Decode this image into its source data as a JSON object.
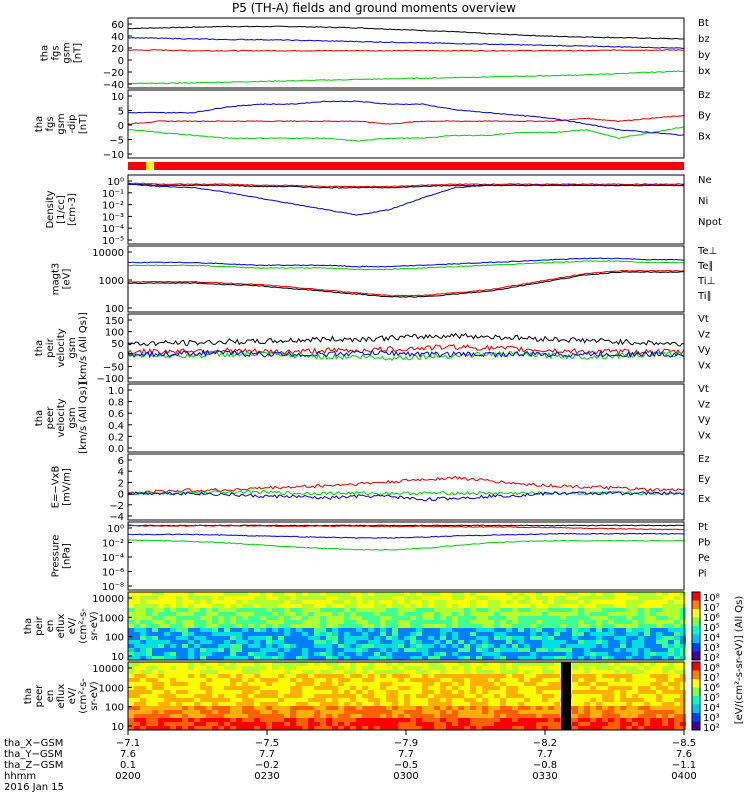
{
  "title": "P5 (TH-A) fields and ground moments overview",
  "colors": {
    "black": "#000000",
    "red": "#e00000",
    "green": "#00d000",
    "blue": "#0000e0"
  },
  "chart_data": [
    {
      "type": "line",
      "id": "fgs_mag",
      "ylabel": [
        "tha",
        "fgs",
        "gsm",
        "[nT]"
      ],
      "yticks": [
        "60",
        "40",
        "20",
        "0",
        "−20",
        "−40"
      ],
      "ylim": [
        -45,
        62
      ],
      "series": [
        {
          "name": "Bt",
          "color": "#000000",
          "values": [
            46,
            47,
            48,
            49,
            49,
            49,
            48,
            47,
            45,
            43,
            41,
            38,
            36,
            34,
            33,
            32,
            31,
            30
          ]
        },
        {
          "name": "bz",
          "color": "#e00000",
          "values": [
            13,
            13,
            12,
            12,
            12,
            12,
            12,
            12,
            12,
            12,
            12,
            12,
            12,
            12,
            12,
            13,
            13,
            13
          ]
        },
        {
          "name": "by",
          "color": "#00d000",
          "values": [
            -38,
            -38,
            -37,
            -36,
            -35,
            -34,
            -33,
            -32,
            -31,
            -30,
            -29,
            -28,
            -27,
            -26,
            -25,
            -23,
            -21,
            -19
          ]
        },
        {
          "name": "bx",
          "color": "#0000e0",
          "values": [
            32,
            31,
            30,
            29,
            29,
            28,
            27,
            26,
            25,
            24,
            23,
            22,
            21,
            20,
            19,
            18,
            17,
            16
          ]
        }
      ]
    },
    {
      "type": "line",
      "id": "fgs_mag_detail",
      "ylabel": [
        "tha",
        "fgs",
        "gsm",
        "-dip",
        "[nT]"
      ],
      "yticks": [
        "10",
        "5",
        "0",
        "−5",
        "−10"
      ],
      "ylim": [
        -13,
        11
      ],
      "series": [
        {
          "name": "Bz",
          "color": "#e00000",
          "values": [
            -1,
            0,
            0,
            0,
            0,
            0,
            0,
            0,
            -1,
            0,
            0,
            0,
            0,
            0,
            1,
            0,
            1,
            2
          ]
        },
        {
          "name": "By",
          "color": "#00d000",
          "values": [
            -3,
            -4,
            -5,
            -6,
            -6,
            -6,
            -6,
            -7,
            -6,
            -6,
            -5,
            -5,
            -4,
            -4,
            -3,
            -6,
            -4,
            -2
          ]
        },
        {
          "name": "Bx",
          "color": "#0000e0",
          "values": [
            3,
            3,
            3,
            5,
            6,
            6,
            7,
            7,
            6,
            6,
            4,
            3,
            2,
            1,
            -1,
            -3,
            -4,
            -5
          ]
        }
      ]
    },
    {
      "type": "line",
      "id": "density",
      "scale": "log",
      "ylabel": [
        "Density",
        "[1/cc]",
        "[cm-3]"
      ],
      "yticks": [
        "10⁰",
        "10⁻¹",
        "10⁻²",
        "10⁻³",
        "10⁻⁴",
        "10⁻⁵"
      ],
      "ylim": [
        -5.5,
        0.5
      ],
      "series": [
        {
          "name": "Ne",
          "color": "#e00000",
          "values": [
            -0.2,
            -0.3,
            -0.3,
            -0.3,
            -0.4,
            -0.4,
            -0.5,
            -0.5,
            -0.5,
            -0.4,
            -0.3,
            -0.3,
            -0.3,
            -0.3,
            -0.3,
            -0.3,
            -0.3,
            -0.3
          ]
        },
        {
          "name": "Ni",
          "color": "#000000",
          "values": [
            -0.3,
            -0.4,
            -0.4,
            -0.4,
            -0.5,
            -0.5,
            -0.6,
            -0.6,
            -0.6,
            -0.5,
            -0.4,
            -0.4,
            -0.4,
            -0.4,
            -0.4,
            -0.4,
            -0.4,
            -0.4
          ]
        },
        {
          "name": "Npot",
          "color": "#0000e0",
          "values": [
            -0.3,
            -0.5,
            -0.6,
            -1.0,
            -1.5,
            -2.0,
            -2.5,
            -3.0,
            -2.5,
            -1.5,
            -0.6,
            -0.4,
            -0.4,
            -0.4,
            -0.4,
            -0.4,
            -0.4,
            -0.4
          ]
        }
      ]
    },
    {
      "type": "line",
      "id": "temperature",
      "scale": "log",
      "ylabel": [
        "magt3",
        "[eV]"
      ],
      "yticks": [
        "10000",
        "1000",
        "100"
      ],
      "ylim": [
        1.7,
        4.1
      ],
      "series": [
        {
          "name": "Te⊥",
          "color": "#e00000",
          "values": [
            2.8,
            2.8,
            2.8,
            2.75,
            2.7,
            2.6,
            2.5,
            2.4,
            2.3,
            2.3,
            2.4,
            2.5,
            2.7,
            2.9,
            3.1,
            3.2,
            3.2,
            3.2
          ]
        },
        {
          "name": "Te∥",
          "color": "#000000",
          "values": [
            2.75,
            2.75,
            2.75,
            2.7,
            2.65,
            2.55,
            2.45,
            2.35,
            2.25,
            2.25,
            2.35,
            2.45,
            2.65,
            2.85,
            3.05,
            3.15,
            3.15,
            3.15
          ]
        },
        {
          "name": "Ti⊥",
          "color": "#0000e0",
          "values": [
            3.5,
            3.5,
            3.5,
            3.45,
            3.4,
            3.4,
            3.4,
            3.35,
            3.35,
            3.4,
            3.45,
            3.5,
            3.55,
            3.6,
            3.65,
            3.65,
            3.6,
            3.6
          ]
        },
        {
          "name": "Ti∥",
          "color": "#00d000",
          "values": [
            3.4,
            3.4,
            3.4,
            3.35,
            3.3,
            3.3,
            3.3,
            3.25,
            3.25,
            3.3,
            3.35,
            3.4,
            3.45,
            3.5,
            3.55,
            3.55,
            3.5,
            3.5
          ]
        }
      ]
    },
    {
      "type": "line",
      "id": "peir_velocity",
      "ylabel": [
        "tha",
        "peir",
        "velocity",
        "gsm",
        "[km/s (All Qs)]"
      ],
      "yticks": [
        "150",
        "100",
        "50",
        "0",
        "−50",
        "−100"
      ],
      "ylim": [
        -110,
        160
      ],
      "series": [
        {
          "name": "Vt",
          "color": "#000000",
          "values": [
            40,
            45,
            45,
            50,
            50,
            55,
            60,
            60,
            65,
            70,
            75,
            70,
            65,
            60,
            55,
            50,
            45,
            40
          ]
        },
        {
          "name": "Vz",
          "color": "#e00000",
          "values": [
            10,
            10,
            15,
            15,
            10,
            10,
            15,
            15,
            20,
            25,
            30,
            25,
            20,
            15,
            10,
            10,
            10,
            10
          ]
        },
        {
          "name": "Vy",
          "color": "#00d000",
          "values": [
            0,
            -5,
            -5,
            0,
            0,
            -5,
            -10,
            -10,
            -15,
            -10,
            -5,
            0,
            0,
            -5,
            -10,
            -5,
            0,
            0
          ]
        },
        {
          "name": "Vx",
          "color": "#0000e0",
          "values": [
            0,
            0,
            5,
            5,
            0,
            0,
            0,
            5,
            5,
            0,
            0,
            0,
            0,
            0,
            0,
            0,
            0,
            0
          ]
        }
      ]
    },
    {
      "type": "line",
      "id": "peer_velocity",
      "ylabel": [
        "tha",
        "peer",
        "velocity",
        "gsm",
        "[km/s (All Qs)]"
      ],
      "yticks": [
        "1.0",
        "0.8",
        "0.6",
        "0.4",
        "0.2",
        "0.0"
      ],
      "ylim": [
        0,
        1.05
      ],
      "series": [
        {
          "name": "Vt",
          "color": "#000000",
          "values": []
        },
        {
          "name": "Vz",
          "color": "#e00000",
          "values": []
        },
        {
          "name": "Vy",
          "color": "#00d000",
          "values": []
        },
        {
          "name": "Vx",
          "color": "#0000e0",
          "values": []
        }
      ]
    },
    {
      "type": "line",
      "id": "efield",
      "ylabel": [
        "E=−VxB",
        "[mV/m]"
      ],
      "yticks": [
        "6",
        "4",
        "2",
        "0",
        "−2",
        "−4"
      ],
      "ylim": [
        -4.3,
        6.3
      ],
      "series": [
        {
          "name": "Ez",
          "color": "#e00000",
          "values": [
            0,
            0.3,
            0.5,
            0.5,
            0.8,
            1.0,
            1.2,
            1.5,
            1.8,
            2.2,
            2.5,
            2.0,
            1.5,
            1.2,
            1.0,
            0.8,
            0.5,
            0.5
          ]
        },
        {
          "name": "Ey",
          "color": "#00d000",
          "values": [
            0,
            0,
            0,
            0.2,
            0.2,
            0,
            0,
            0,
            0,
            0,
            0,
            0,
            0,
            0,
            0,
            0,
            0,
            0
          ]
        },
        {
          "name": "Ex",
          "color": "#0000e0",
          "values": [
            0,
            0,
            0,
            -0.2,
            -0.5,
            -0.5,
            -0.8,
            -0.5,
            -0.5,
            -1.0,
            -0.8,
            -0.5,
            -0.3,
            0,
            0,
            0,
            0,
            0
          ]
        }
      ]
    },
    {
      "type": "line",
      "id": "pressure",
      "scale": "log",
      "ylabel": [
        "Pressure",
        "[nPa]"
      ],
      "yticks": [
        "10⁰",
        "10⁻²",
        "10⁻⁴",
        "10⁻⁶",
        "10⁻⁸"
      ],
      "ylim": [
        -9,
        0.8
      ],
      "series": [
        {
          "name": "Pt",
          "color": "#000000",
          "values": [
            0.3,
            0.3,
            0.3,
            0.3,
            0.3,
            0.3,
            0.3,
            0.3,
            0.3,
            0.3,
            0.3,
            0.3,
            0.3,
            0.3,
            0.3,
            0.3,
            0.3,
            0.3
          ]
        },
        {
          "name": "Pb",
          "color": "#e00000",
          "values": [
            0.25,
            0.25,
            0.25,
            0.25,
            0.25,
            0.2,
            0.2,
            0.2,
            0.15,
            0.15,
            0.1,
            0.1,
            0.05,
            0,
            -0.1,
            -0.2,
            -0.25,
            -0.3
          ]
        },
        {
          "name": "Pe",
          "color": "#00d000",
          "values": [
            -1.8,
            -1.9,
            -2.0,
            -2.2,
            -2.5,
            -2.8,
            -3.0,
            -3.2,
            -3.2,
            -3.0,
            -2.6,
            -2.2,
            -2.0,
            -1.9,
            -1.9,
            -1.9,
            -1.9,
            -1.9
          ]
        },
        {
          "name": "Pi",
          "color": "#0000e0",
          "values": [
            -1.0,
            -1.0,
            -1.0,
            -1.1,
            -1.2,
            -1.3,
            -1.4,
            -1.5,
            -1.5,
            -1.4,
            -1.2,
            -1.1,
            -1.0,
            -0.9,
            -0.9,
            -0.9,
            -0.9,
            -0.9
          ]
        }
      ]
    },
    {
      "type": "heatmap",
      "id": "peir_spec",
      "ylabel": [
        "tha",
        "peir",
        "en",
        "eflux",
        "eV/",
        "(cm²-s-",
        "sr-eV)"
      ],
      "yticks": [
        "10000",
        "1000",
        "100",
        "10"
      ]
    },
    {
      "type": "heatmap",
      "id": "peer_spec",
      "ylabel": [
        "tha",
        "peer",
        "en",
        "eflux",
        "eV/",
        "(cm²-s-",
        "sr-eV)"
      ],
      "yticks": [
        "10000",
        "1000",
        "100",
        "10"
      ]
    }
  ],
  "colorbar": {
    "label": "[eV/(cm²-s-sr-eV)] (All Qs)",
    "ticks": [
      "10⁸",
      "10⁷",
      "10⁶",
      "10⁵",
      "10⁴",
      "10³",
      "10²"
    ]
  },
  "xaxis": {
    "ticks": [
      {
        "X": "−7.1",
        "Y": "7.6",
        "Z": "0.1",
        "hhmm": "0200"
      },
      {
        "X": "−7.5",
        "Y": "7.7",
        "Z": "−0.2",
        "hhmm": "0230"
      },
      {
        "X": "−7.9",
        "Y": "7.7",
        "Z": "−0.5",
        "hhmm": "0300"
      },
      {
        "X": "−8.2",
        "Y": "7.7",
        "Z": "−0.8",
        "hhmm": "0330"
      },
      {
        "X": "−8.5",
        "Y": "7.6",
        "Z": "−1.1",
        "hhmm": "0400"
      }
    ],
    "row_labels": [
      "tha_X−GSM",
      "tha_Y−GSM",
      "tha_Z−GSM",
      "hhmm"
    ],
    "date": "2016 Jan 15"
  }
}
